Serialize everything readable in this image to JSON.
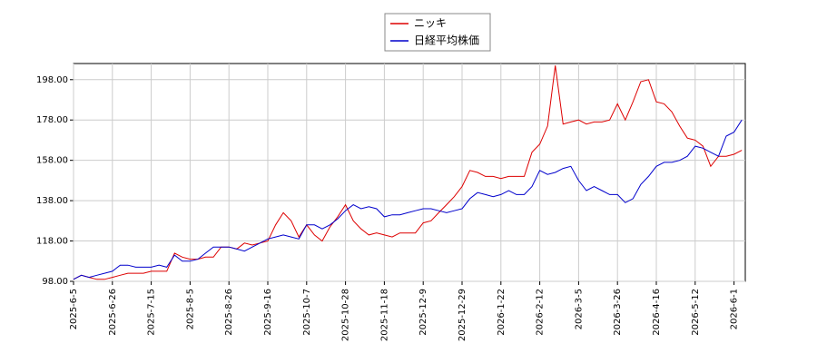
{
  "chart_data": {
    "type": "line",
    "x": [
      "2025-6-5",
      null,
      null,
      null,
      null,
      "2025-6-26",
      null,
      null,
      null,
      null,
      "2025-7-15",
      null,
      null,
      null,
      null,
      "2025-8-5",
      null,
      null,
      null,
      null,
      "2025-8-26",
      null,
      null,
      null,
      null,
      "2025-9-16",
      null,
      null,
      null,
      null,
      "2025-10-7",
      null,
      null,
      null,
      null,
      "2025-10-28",
      null,
      null,
      null,
      null,
      "2025-11-18",
      null,
      null,
      null,
      null,
      "2025-12-9",
      null,
      null,
      null,
      null,
      "2025-12-29",
      null,
      null,
      null,
      null,
      "2026-1-22",
      null,
      null,
      null,
      null,
      "2026-2-12",
      null,
      null,
      null,
      null,
      "2026-3-5",
      null,
      null,
      null,
      null,
      "2026-3-26",
      null,
      null,
      null,
      null,
      "2026-4-16",
      null,
      null,
      null,
      null,
      "2026-5-12",
      null,
      null,
      null,
      null,
      "2026-6-1",
      null
    ],
    "series": [
      {
        "name": "ニッキ",
        "color": "#dd0000",
        "values": [
          99,
          101,
          100,
          99,
          99,
          100,
          101,
          102,
          102,
          102,
          103,
          103,
          103,
          112,
          110,
          109,
          109,
          110,
          110,
          115,
          115,
          114,
          117,
          116,
          117,
          118,
          126,
          132,
          128,
          120,
          126,
          121,
          118,
          125,
          130,
          136,
          128,
          124,
          121,
          122,
          121,
          120,
          122,
          122,
          122,
          127,
          128,
          132,
          136,
          140,
          145,
          153,
          152,
          150,
          150,
          149,
          150,
          150,
          150,
          162,
          166,
          175,
          205,
          176,
          177,
          178,
          176,
          177,
          177,
          178,
          186,
          178,
          187,
          197,
          198,
          187,
          186,
          182,
          175,
          169,
          168,
          165,
          155,
          160,
          160,
          161,
          163
        ]
      },
      {
        "name": "日経平均株価",
        "color": "#0000cc",
        "values": [
          99,
          101,
          100,
          101,
          102,
          103,
          106,
          106,
          105,
          105,
          105,
          106,
          105,
          111,
          108,
          108,
          109,
          112,
          115,
          115,
          115,
          114,
          113,
          115,
          117,
          119,
          120,
          121,
          120,
          119,
          126,
          126,
          124,
          126,
          129,
          133,
          136,
          134,
          135,
          134,
          130,
          131,
          131,
          132,
          133,
          134,
          134,
          133,
          132,
          133,
          134,
          139,
          142,
          141,
          140,
          141,
          143,
          141,
          141,
          145,
          153,
          151,
          152,
          154,
          155,
          148,
          143,
          145,
          143,
          141,
          141,
          137,
          139,
          146,
          150,
          155,
          157,
          157,
          158,
          160,
          165,
          164,
          162,
          160,
          170,
          172,
          178
        ]
      }
    ],
    "ylim": [
      98,
      206
    ],
    "yticks": [
      {
        "value": 98,
        "label": "98.00"
      },
      {
        "value": 118,
        "label": "118.00"
      },
      {
        "value": 138,
        "label": "138.00"
      },
      {
        "value": 158,
        "label": "158.00"
      },
      {
        "value": 178,
        "label": "178.00"
      },
      {
        "value": 198,
        "label": "198.00"
      }
    ],
    "grid": true
  }
}
